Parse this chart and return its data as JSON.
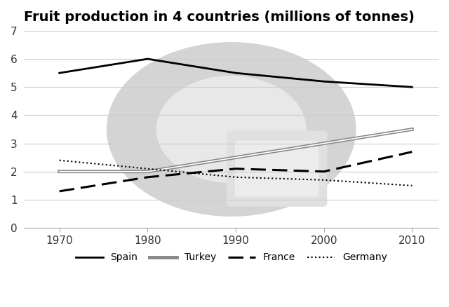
{
  "title": "Fruit production in 4 countries (millions of tonnes)",
  "years": [
    1970,
    1980,
    1990,
    2000,
    2010
  ],
  "series": {
    "Spain": [
      5.5,
      6.0,
      5.5,
      5.2,
      5.0
    ],
    "Turkey": [
      2.0,
      2.0,
      2.5,
      3.0,
      3.5
    ],
    "France": [
      1.3,
      1.8,
      2.1,
      2.0,
      2.7
    ],
    "Germany": [
      2.4,
      2.1,
      1.8,
      1.7,
      1.5
    ]
  },
  "ylim": [
    0,
    7
  ],
  "yticks": [
    0,
    1,
    2,
    3,
    4,
    5,
    6,
    7
  ],
  "plot_bg": "#ffffff",
  "title_fontsize": 14,
  "title_fontweight": "bold",
  "wm_outer_color": "#d4d4d4",
  "wm_inner_color": "#e8e8e8",
  "wm_card_color": "#e0e0e0",
  "wm_card_inner_color": "#ececec"
}
